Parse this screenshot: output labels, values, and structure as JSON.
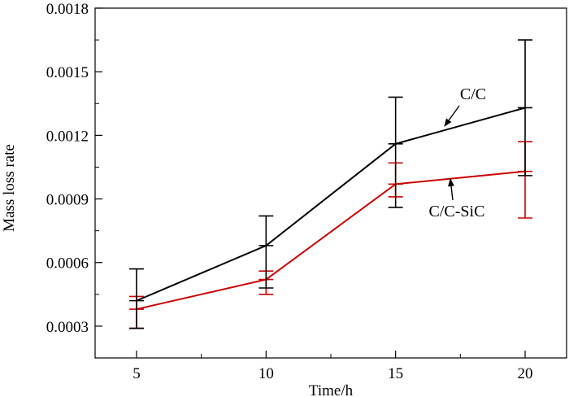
{
  "chart_data": {
    "type": "line",
    "title": "",
    "xlabel": "Time/h",
    "ylabel": "Mass loss rate",
    "x": [
      5,
      10,
      15,
      20
    ],
    "xticks": [
      "5",
      "10",
      "15",
      "20"
    ],
    "yticks": [
      "0.0003",
      "0.0006",
      "0.0009",
      "0.0012",
      "0.0015",
      "0.0018"
    ],
    "xlim": [
      3.4,
      21.6
    ],
    "ylim": [
      0.00015,
      0.0018
    ],
    "grid": false,
    "series": [
      {
        "name": "C/C",
        "color": "#000000",
        "values": [
          0.00042,
          0.00068,
          0.00116,
          0.00133
        ],
        "error_low": [
          0.00029,
          0.00048,
          0.00086,
          0.00101
        ],
        "error_high": [
          0.00057,
          0.00082,
          0.00138,
          0.00165
        ]
      },
      {
        "name": "C/C-SiC",
        "color": "#cc0000",
        "values": [
          0.00038,
          0.00052,
          0.00097,
          0.00103
        ],
        "error_low": [
          0.00029,
          0.00045,
          0.00091,
          0.00081
        ],
        "error_high": [
          0.00044,
          0.00056,
          0.00107,
          0.00117
        ]
      }
    ]
  }
}
